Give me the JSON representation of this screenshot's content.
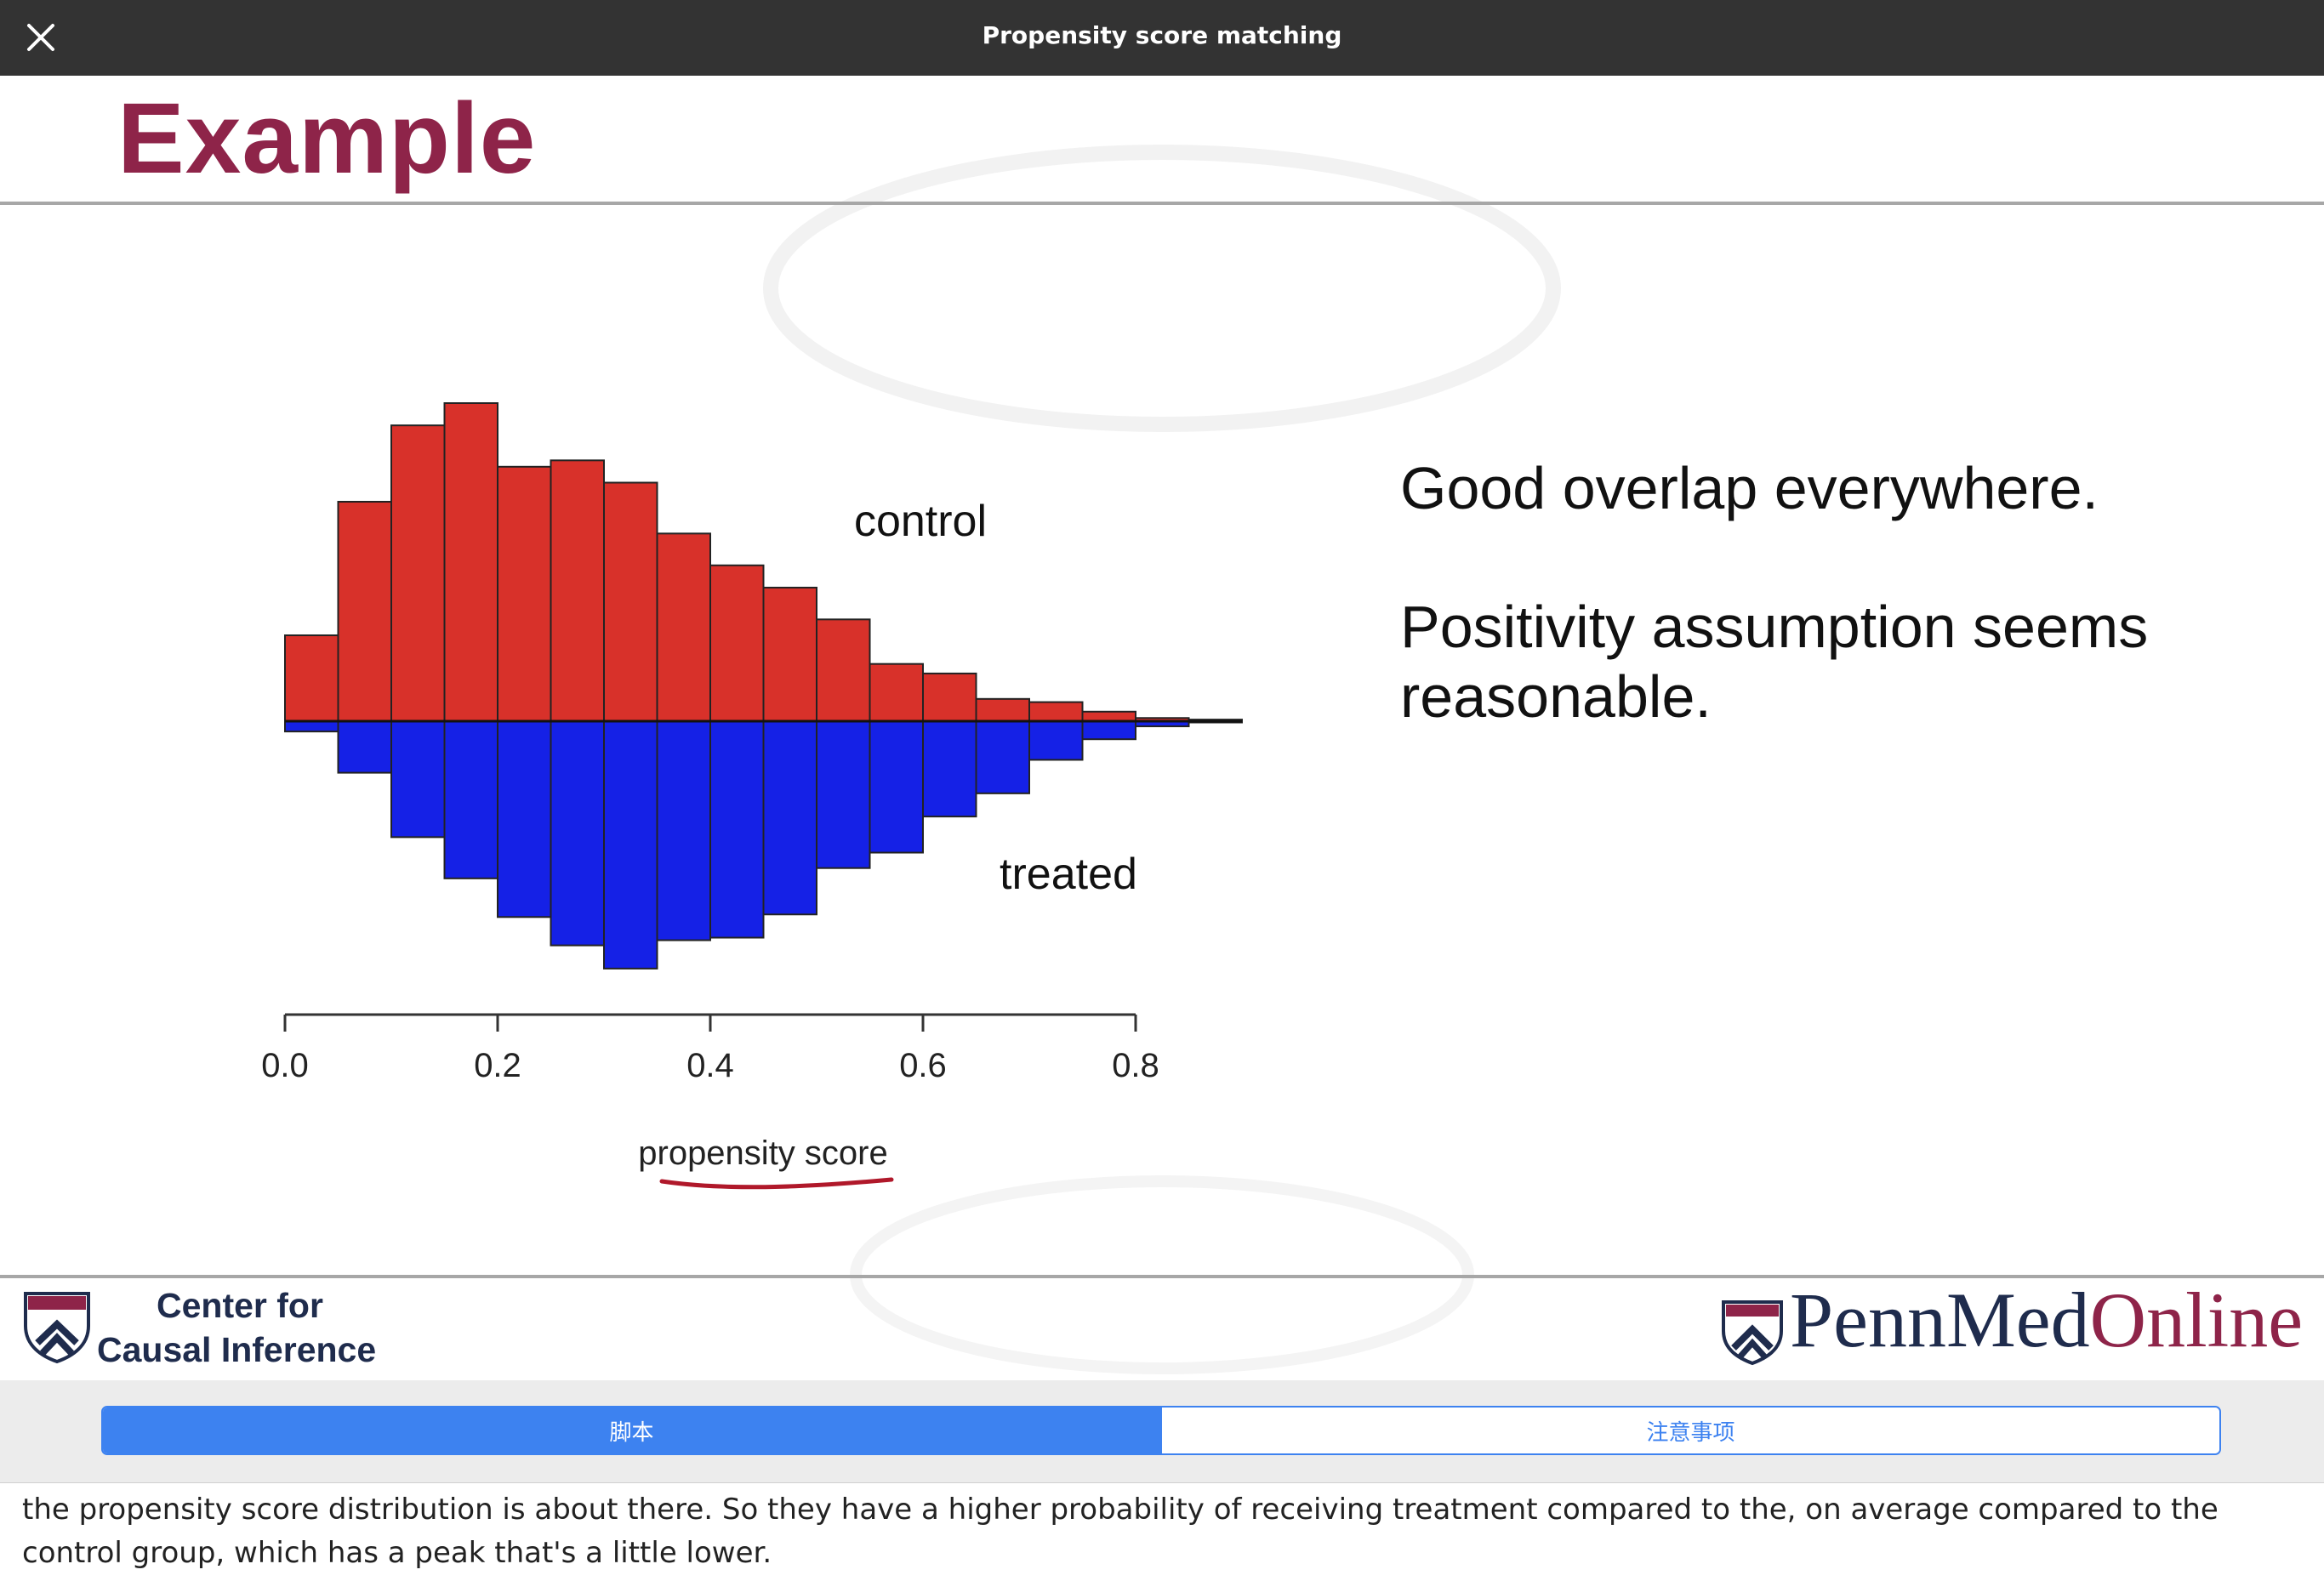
{
  "window": {
    "title": "Propensity score matching",
    "close_icon": "close-icon"
  },
  "slide": {
    "title": "Example",
    "bullets": [
      "Good overlap everywhere.",
      "Positivity assumption seems reasonable."
    ],
    "colors": {
      "title": "#8e2449",
      "control": "#d8312a",
      "treated": "#1521e6",
      "annotation": "#b0182a"
    },
    "footer": {
      "left_logo_text_line1": "Center for",
      "left_logo_text_line2": "Causal Inference",
      "right_logo_text_part1": "PennMed",
      "right_logo_text_part2": "Online",
      "shield_icon": "penn-shield-icon"
    }
  },
  "chart_data": {
    "type": "bar",
    "subtype": "mirrored-histogram",
    "xlabel": "propensity score",
    "x_ticks": [
      "0.0",
      "0.2",
      "0.4",
      "0.6",
      "0.8"
    ],
    "xlim": [
      0,
      0.9
    ],
    "bin_edges": [
      0.0,
      0.05,
      0.1,
      0.15,
      0.2,
      0.25,
      0.3,
      0.35,
      0.4,
      0.45,
      0.5,
      0.55,
      0.6,
      0.65,
      0.7,
      0.75,
      0.8,
      0.85,
      0.9
    ],
    "series": [
      {
        "name": "control",
        "direction": "up",
        "values": [
          0.27,
          0.69,
          0.93,
          1.0,
          0.8,
          0.82,
          0.75,
          0.59,
          0.49,
          0.42,
          0.32,
          0.18,
          0.15,
          0.07,
          0.06,
          0.03,
          0.01,
          0.005
        ]
      },
      {
        "name": "treated",
        "direction": "down",
        "values": [
          0.04,
          0.2,
          0.45,
          0.61,
          0.76,
          0.87,
          0.96,
          0.85,
          0.84,
          0.75,
          0.57,
          0.51,
          0.37,
          0.28,
          0.15,
          0.07,
          0.02,
          0.005
        ]
      }
    ],
    "x": [
      0.025,
      0.075,
      0.125,
      0.175,
      0.225,
      0.275,
      0.325,
      0.375,
      0.425,
      0.475,
      0.525,
      0.575,
      0.625,
      0.675,
      0.725,
      0.775,
      0.825,
      0.875
    ],
    "annotations": [
      {
        "type": "handwritten-underline",
        "target": "propensity score"
      }
    ]
  },
  "tabs": [
    {
      "label": "脚本",
      "active": true
    },
    {
      "label": "注意事项",
      "active": false
    }
  ],
  "transcript": {
    "text": "the propensity score distribution is about there. So they have a higher probability of receiving treatment compared to the, on average compared to the control group, which has a peak that's a little lower."
  }
}
